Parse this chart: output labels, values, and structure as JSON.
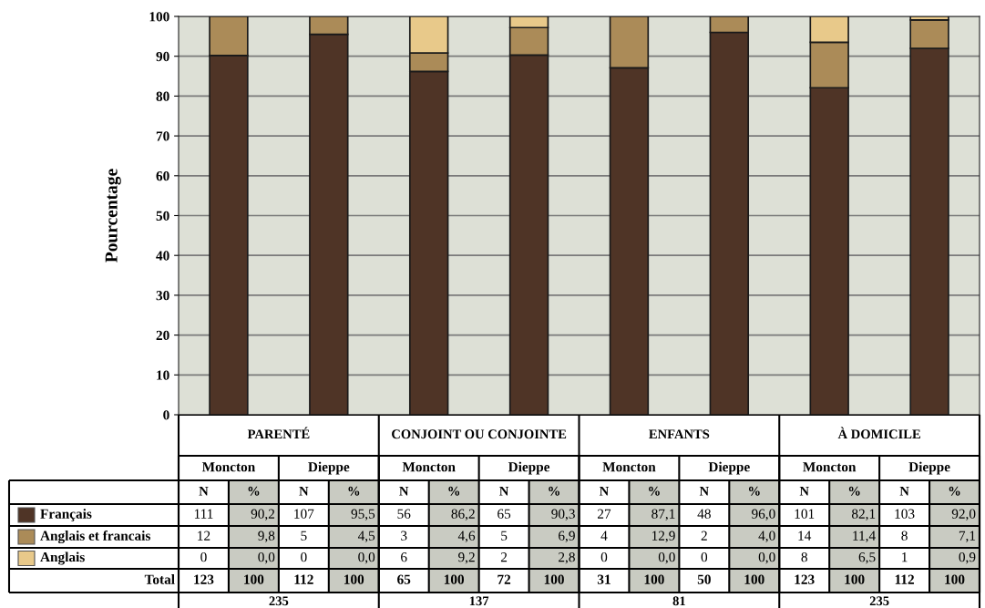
{
  "chart_data": {
    "type": "bar",
    "stacked": true,
    "ylabel": "Pourcentage",
    "categories": [
      "Moncton",
      "Dieppe",
      "Moncton",
      "Dieppe",
      "Moncton",
      "Dieppe",
      "Moncton",
      "Dieppe"
    ],
    "series": [
      {
        "name": "Français",
        "color": "#4f3426",
        "values": [
          90.2,
          95.5,
          86.2,
          90.3,
          87.1,
          96.0,
          82.1,
          92.0
        ],
        "value_labels": [
          "90,2",
          "95,5",
          "86,2",
          "90,3",
          "87,1",
          "96,0",
          "82,1",
          "92,0"
        ]
      },
      {
        "name": "Anglais et francais",
        "color": "#ab8b58",
        "values": [
          9.8,
          4.5,
          4.6,
          6.9,
          12.9,
          4.0,
          11.4,
          7.1
        ],
        "value_labels": [
          "9,8",
          "4,5",
          "4,6",
          "6,9",
          "12,9",
          "4,0",
          "11,4",
          "7,1"
        ]
      },
      {
        "name": "Anglais",
        "color": "#e8c98a",
        "values": [
          0.0,
          0.0,
          9.2,
          2.8,
          0.0,
          0.0,
          6.5,
          0.9
        ],
        "value_labels": [
          "0,0",
          "0,0",
          "9,2",
          "2,8",
          "0,0",
          "0,0",
          "6,5",
          "0,9"
        ]
      }
    ],
    "ylim": [
      0,
      100
    ],
    "yticks": [
      0,
      10,
      20,
      30,
      40,
      50,
      60,
      70,
      80,
      90,
      100
    ],
    "grid": "y",
    "legend": "bottom left",
    "annotations": [
      "PARENTÉ",
      "CONJOINT OU CONJOINTE",
      "ENFANTS",
      "À DOMICILE",
      "N",
      "%",
      "Total",
      "111",
      "107",
      "56",
      "65",
      "27",
      "48",
      "101",
      "103",
      "12",
      "5",
      "3",
      "5",
      "4",
      "2",
      "14",
      "8",
      "0",
      "0",
      "6",
      "2",
      "0",
      "0",
      "8",
      "1",
      "123",
      "112",
      "65",
      "72",
      "31",
      "50",
      "123",
      "112",
      "100",
      "235",
      "137",
      "81",
      "235"
    ]
  }
}
